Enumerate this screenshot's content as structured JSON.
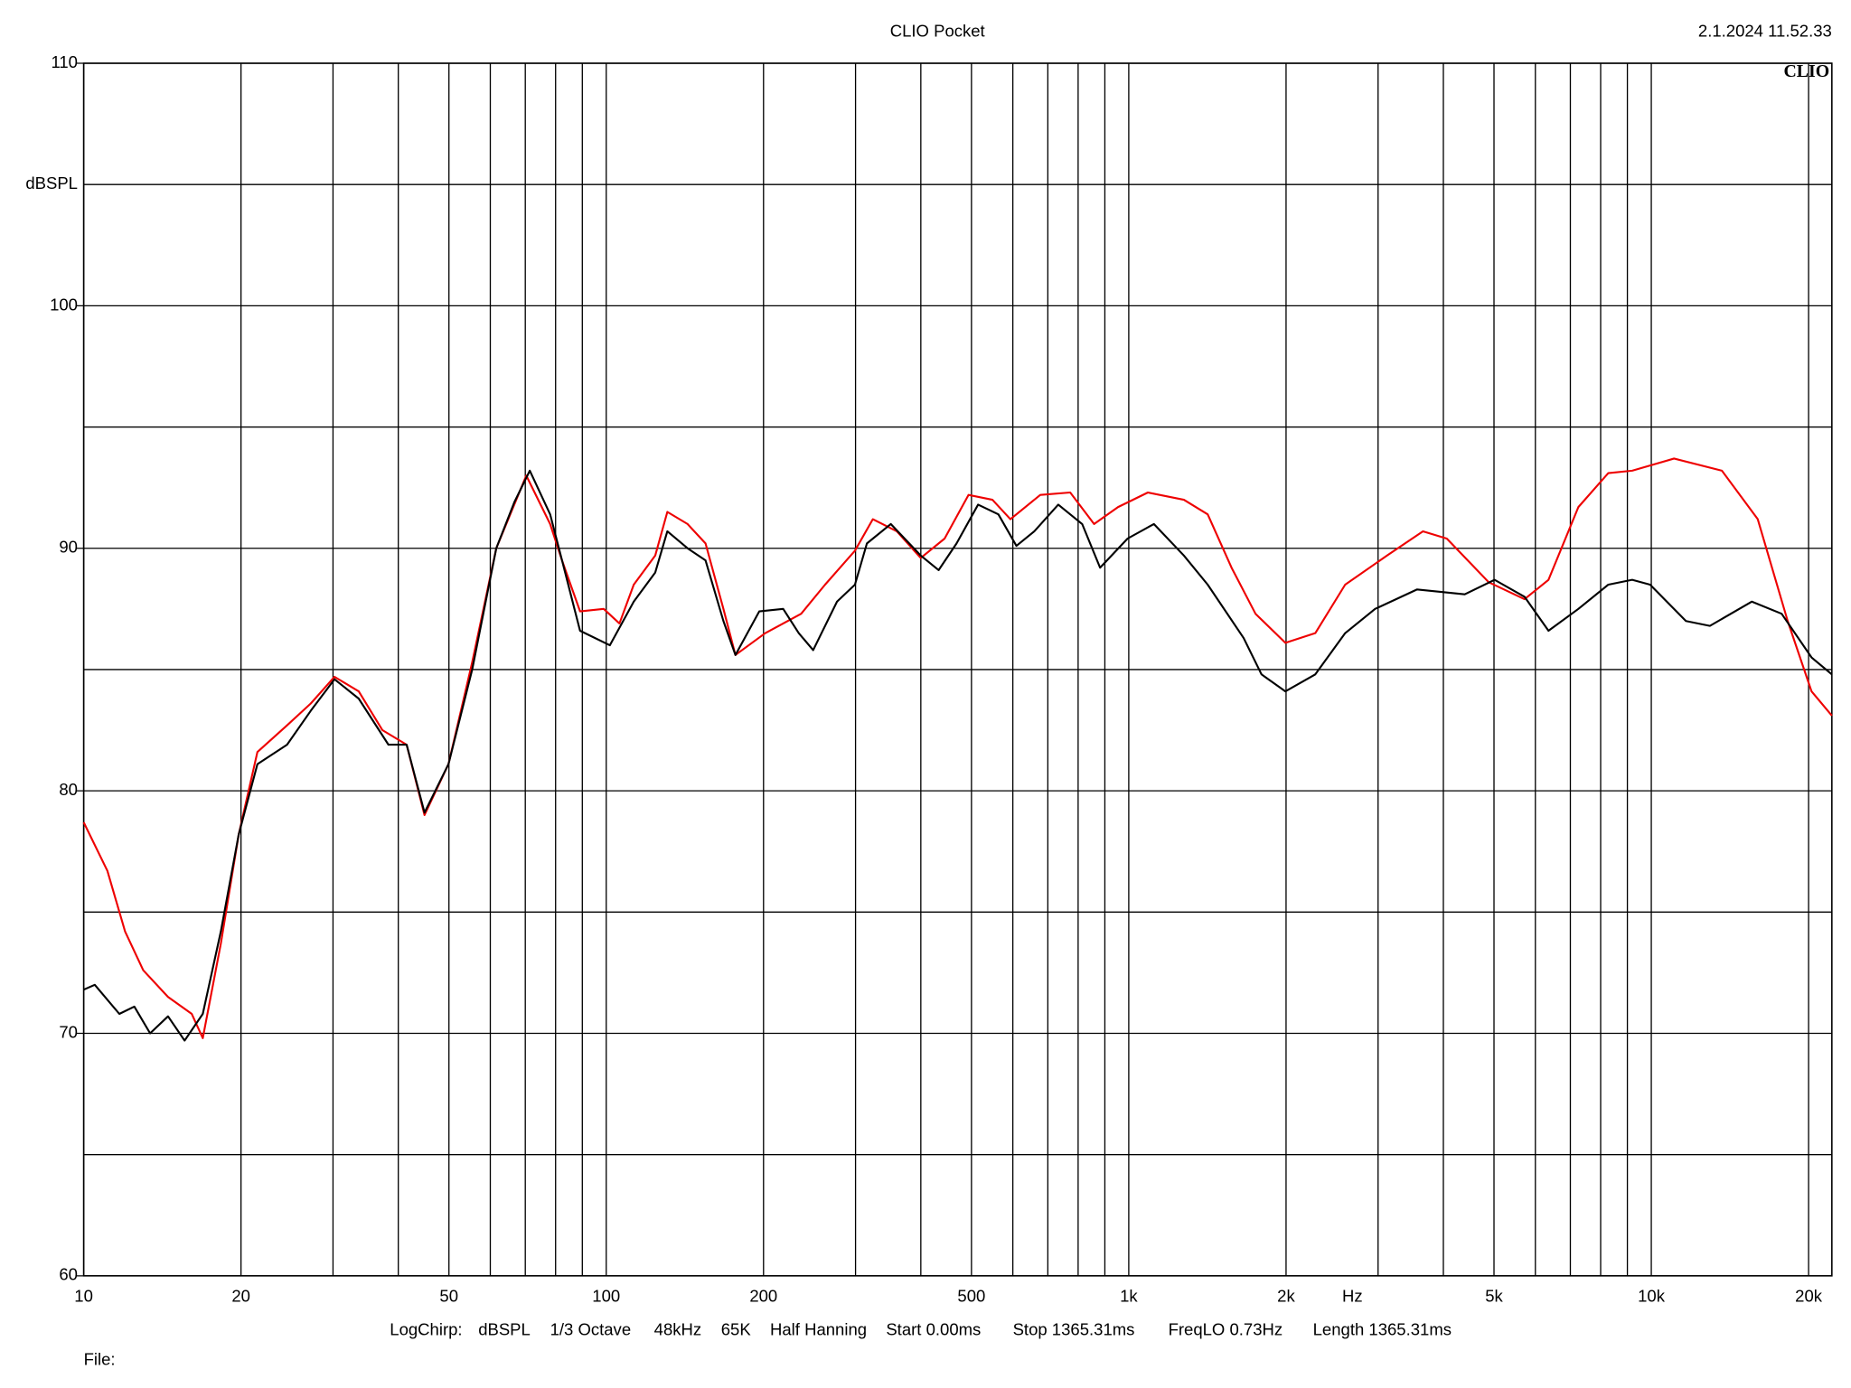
{
  "chart_data": {
    "type": "line",
    "title": "CLIO Pocket",
    "timestamp": "2.1.2024 11.52.33",
    "logo": "CLIO",
    "y_label": "dBSPL",
    "x_label": "Hz",
    "footer": [
      "LogChirp:",
      "dBSPL",
      "1/3 Octave",
      "48kHz",
      "65K",
      "Half Hanning",
      "Start 0.00ms",
      "Stop 1365.31ms",
      "FreqLO 0.73Hz",
      "Length 1365.31ms"
    ],
    "file_label": "File:",
    "x_log": true,
    "grid": true,
    "xlim": [
      10,
      22160
    ],
    "ylim": [
      60,
      110
    ],
    "xticks": [
      10,
      20,
      50,
      100,
      200,
      500,
      {
        "value": 1000,
        "label": "1k"
      },
      {
        "value": 2000,
        "label": "2k"
      },
      {
        "value": 5000,
        "label": "5k"
      },
      {
        "value": 10000,
        "label": "10k"
      },
      {
        "value": 20000,
        "label": "20k"
      }
    ],
    "xminor": [
      30,
      40,
      60,
      70,
      80,
      90,
      300,
      400,
      600,
      700,
      800,
      900,
      3000,
      4000,
      6000,
      7000,
      8000,
      9000
    ],
    "yticks": [
      60,
      70,
      80,
      90,
      100,
      110
    ],
    "yminor": [
      65,
      75,
      85,
      95,
      105
    ],
    "series": [
      {
        "name": "black",
        "color": "#000000",
        "x": [
          10,
          10.5,
          11.7,
          12.5,
          13.4,
          14.5,
          15.6,
          16.9,
          18.3,
          19.8,
          21.5,
          24.5,
          27.2,
          30.2,
          33.6,
          38.3,
          41.5,
          44.9,
          49.9,
          55.4,
          61.6,
          66.7,
          71.4,
          78.1,
          82.3,
          89.1,
          101.6,
          112.9,
          124.1,
          130.9,
          143.1,
          154.9,
          167.6,
          176.7,
          196.3,
          218.1,
          233.6,
          248.9,
          276.5,
          299.2,
          315.4,
          350.4,
          399.9,
          432.7,
          468.2,
          514.8,
          563.0,
          609.5,
          659.6,
          732.9,
          814.4,
          881.3,
          994.8,
          1117,
          1275,
          1416,
          1659,
          1795,
          1994,
          2275,
          2595,
          2961,
          3560,
          4395,
          5013,
          5720,
          6357,
          7252,
          8274,
          9192,
          9947,
          11650,
          12946,
          15570,
          17760,
          20260,
          22160
        ],
        "values": [
          71.8,
          72.0,
          70.8,
          71.1,
          70.0,
          70.7,
          69.7,
          70.8,
          74.2,
          78.2,
          81.1,
          81.9,
          83.3,
          84.6,
          83.8,
          81.9,
          81.9,
          79.1,
          81.1,
          85.0,
          90.0,
          91.9,
          93.2,
          91.4,
          89.5,
          86.6,
          86.0,
          87.8,
          89.0,
          90.7,
          90.0,
          89.5,
          87.0,
          85.6,
          87.4,
          87.5,
          86.5,
          85.8,
          87.8,
          88.5,
          90.2,
          91.0,
          89.7,
          89.1,
          90.2,
          91.8,
          91.4,
          90.1,
          90.7,
          91.8,
          91.0,
          89.2,
          90.4,
          91.0,
          89.7,
          88.5,
          86.3,
          84.8,
          84.1,
          84.8,
          86.5,
          87.5,
          88.3,
          88.1,
          88.7,
          88.0,
          86.6,
          87.5,
          88.5,
          88.7,
          88.5,
          87.0,
          86.8,
          87.8,
          87.3,
          85.5,
          84.8
        ]
      },
      {
        "name": "red",
        "color": "#ee0000",
        "x": [
          10,
          11.1,
          12.0,
          13.0,
          14.5,
          16.1,
          16.9,
          18.3,
          19.8,
          21.5,
          24.5,
          27.2,
          30.2,
          33.6,
          37.3,
          41.5,
          44.9,
          49.9,
          55.4,
          61.6,
          70.3,
          78.1,
          82.3,
          89.1,
          98.9,
          106,
          112.9,
          124.1,
          130.9,
          143.1,
          154.9,
          167.6,
          176.7,
          201.5,
          236.1,
          262.3,
          299.2,
          323.8,
          359.8,
          399.9,
          444.2,
          493.5,
          548.4,
          593.6,
          677.1,
          772.6,
          858.3,
          954,
          1088,
          1275,
          1416,
          1573,
          1748,
          1994,
          2275,
          2595,
          3121,
          3656,
          4061,
          4885,
          5720,
          6357,
          7252,
          8274,
          9192,
          11055,
          13650,
          15985,
          18240,
          20260,
          22160
        ],
        "values": [
          78.7,
          76.7,
          74.2,
          72.6,
          71.5,
          70.8,
          69.8,
          73.7,
          78.2,
          81.6,
          82.7,
          83.6,
          84.7,
          84.1,
          82.5,
          81.9,
          79.0,
          81.1,
          85.3,
          90.0,
          93.0,
          91.0,
          89.5,
          87.4,
          87.5,
          86.9,
          88.5,
          89.7,
          91.5,
          91.0,
          90.2,
          87.5,
          85.6,
          86.5,
          87.3,
          88.5,
          89.9,
          91.2,
          90.7,
          89.6,
          90.4,
          92.2,
          92.0,
          91.2,
          92.2,
          92.3,
          91.0,
          91.7,
          92.3,
          92.0,
          91.4,
          89.2,
          87.3,
          86.1,
          86.5,
          88.5,
          89.7,
          90.7,
          90.4,
          88.6,
          87.9,
          88.7,
          91.7,
          93.1,
          93.2,
          93.7,
          93.2,
          91.2,
          87.0,
          84.1,
          83.1
        ]
      }
    ]
  }
}
